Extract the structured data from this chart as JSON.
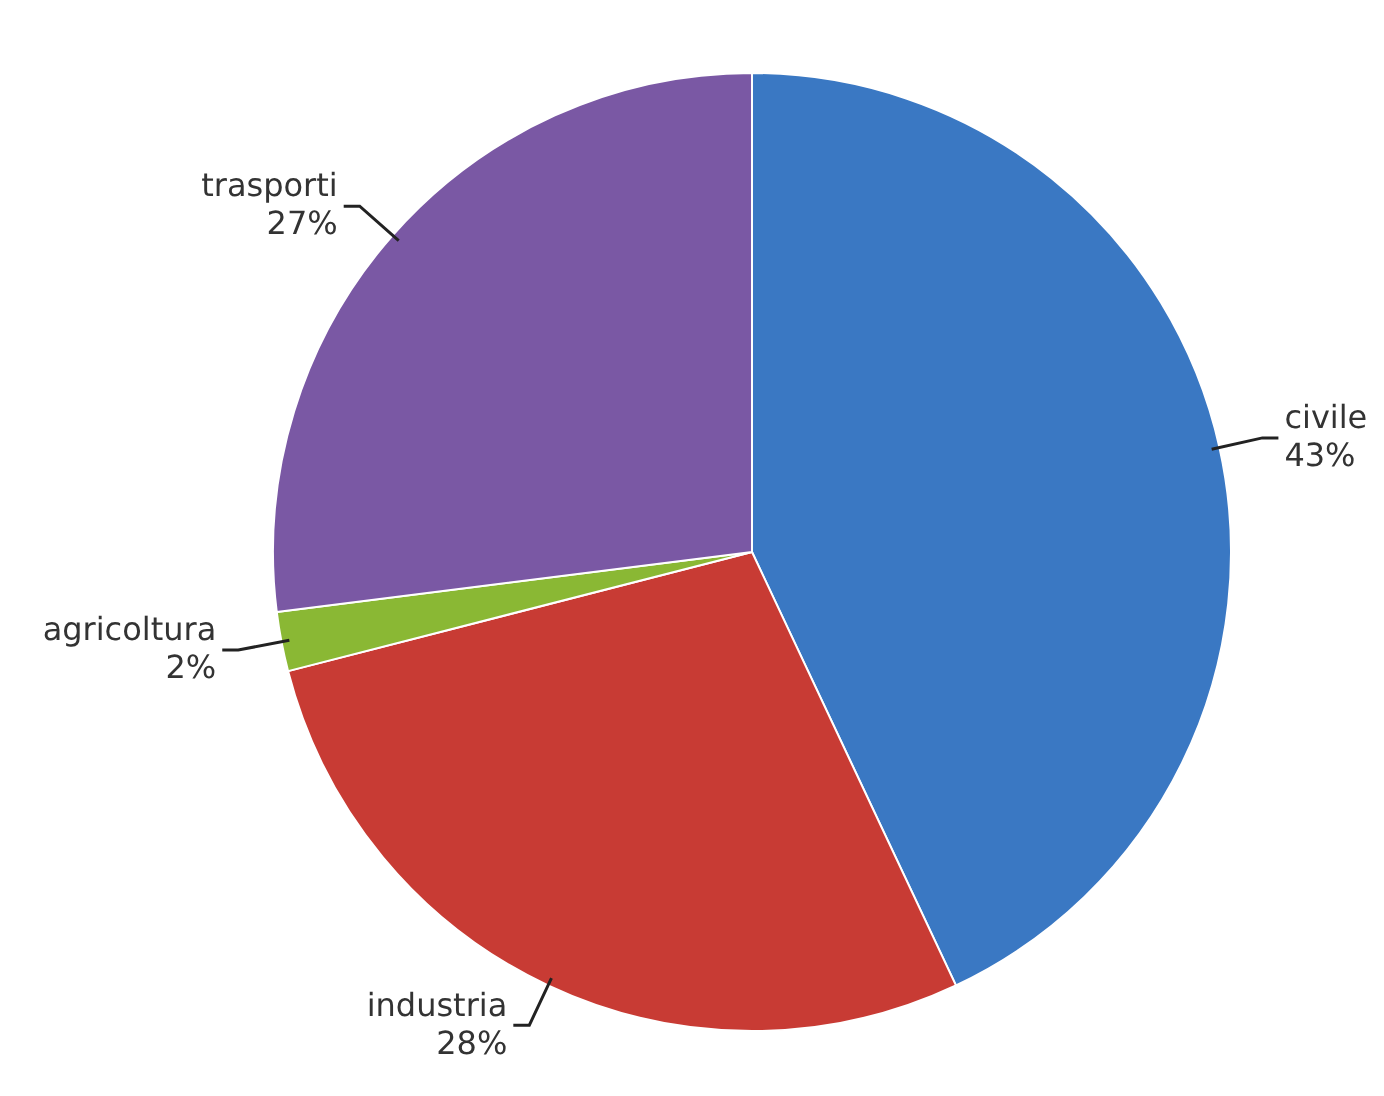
{
  "chart_data": {
    "type": "pie",
    "categories": [
      "civile",
      "industria",
      "agricoltura",
      "trasporti"
    ],
    "values": [
      43,
      28,
      2,
      27
    ],
    "value_labels": [
      "43%",
      "28%",
      "2%",
      "27%"
    ],
    "colors": [
      "#3a78c3",
      "#c83b34",
      "#8ab834",
      "#7a58a4"
    ],
    "legend": false
  }
}
